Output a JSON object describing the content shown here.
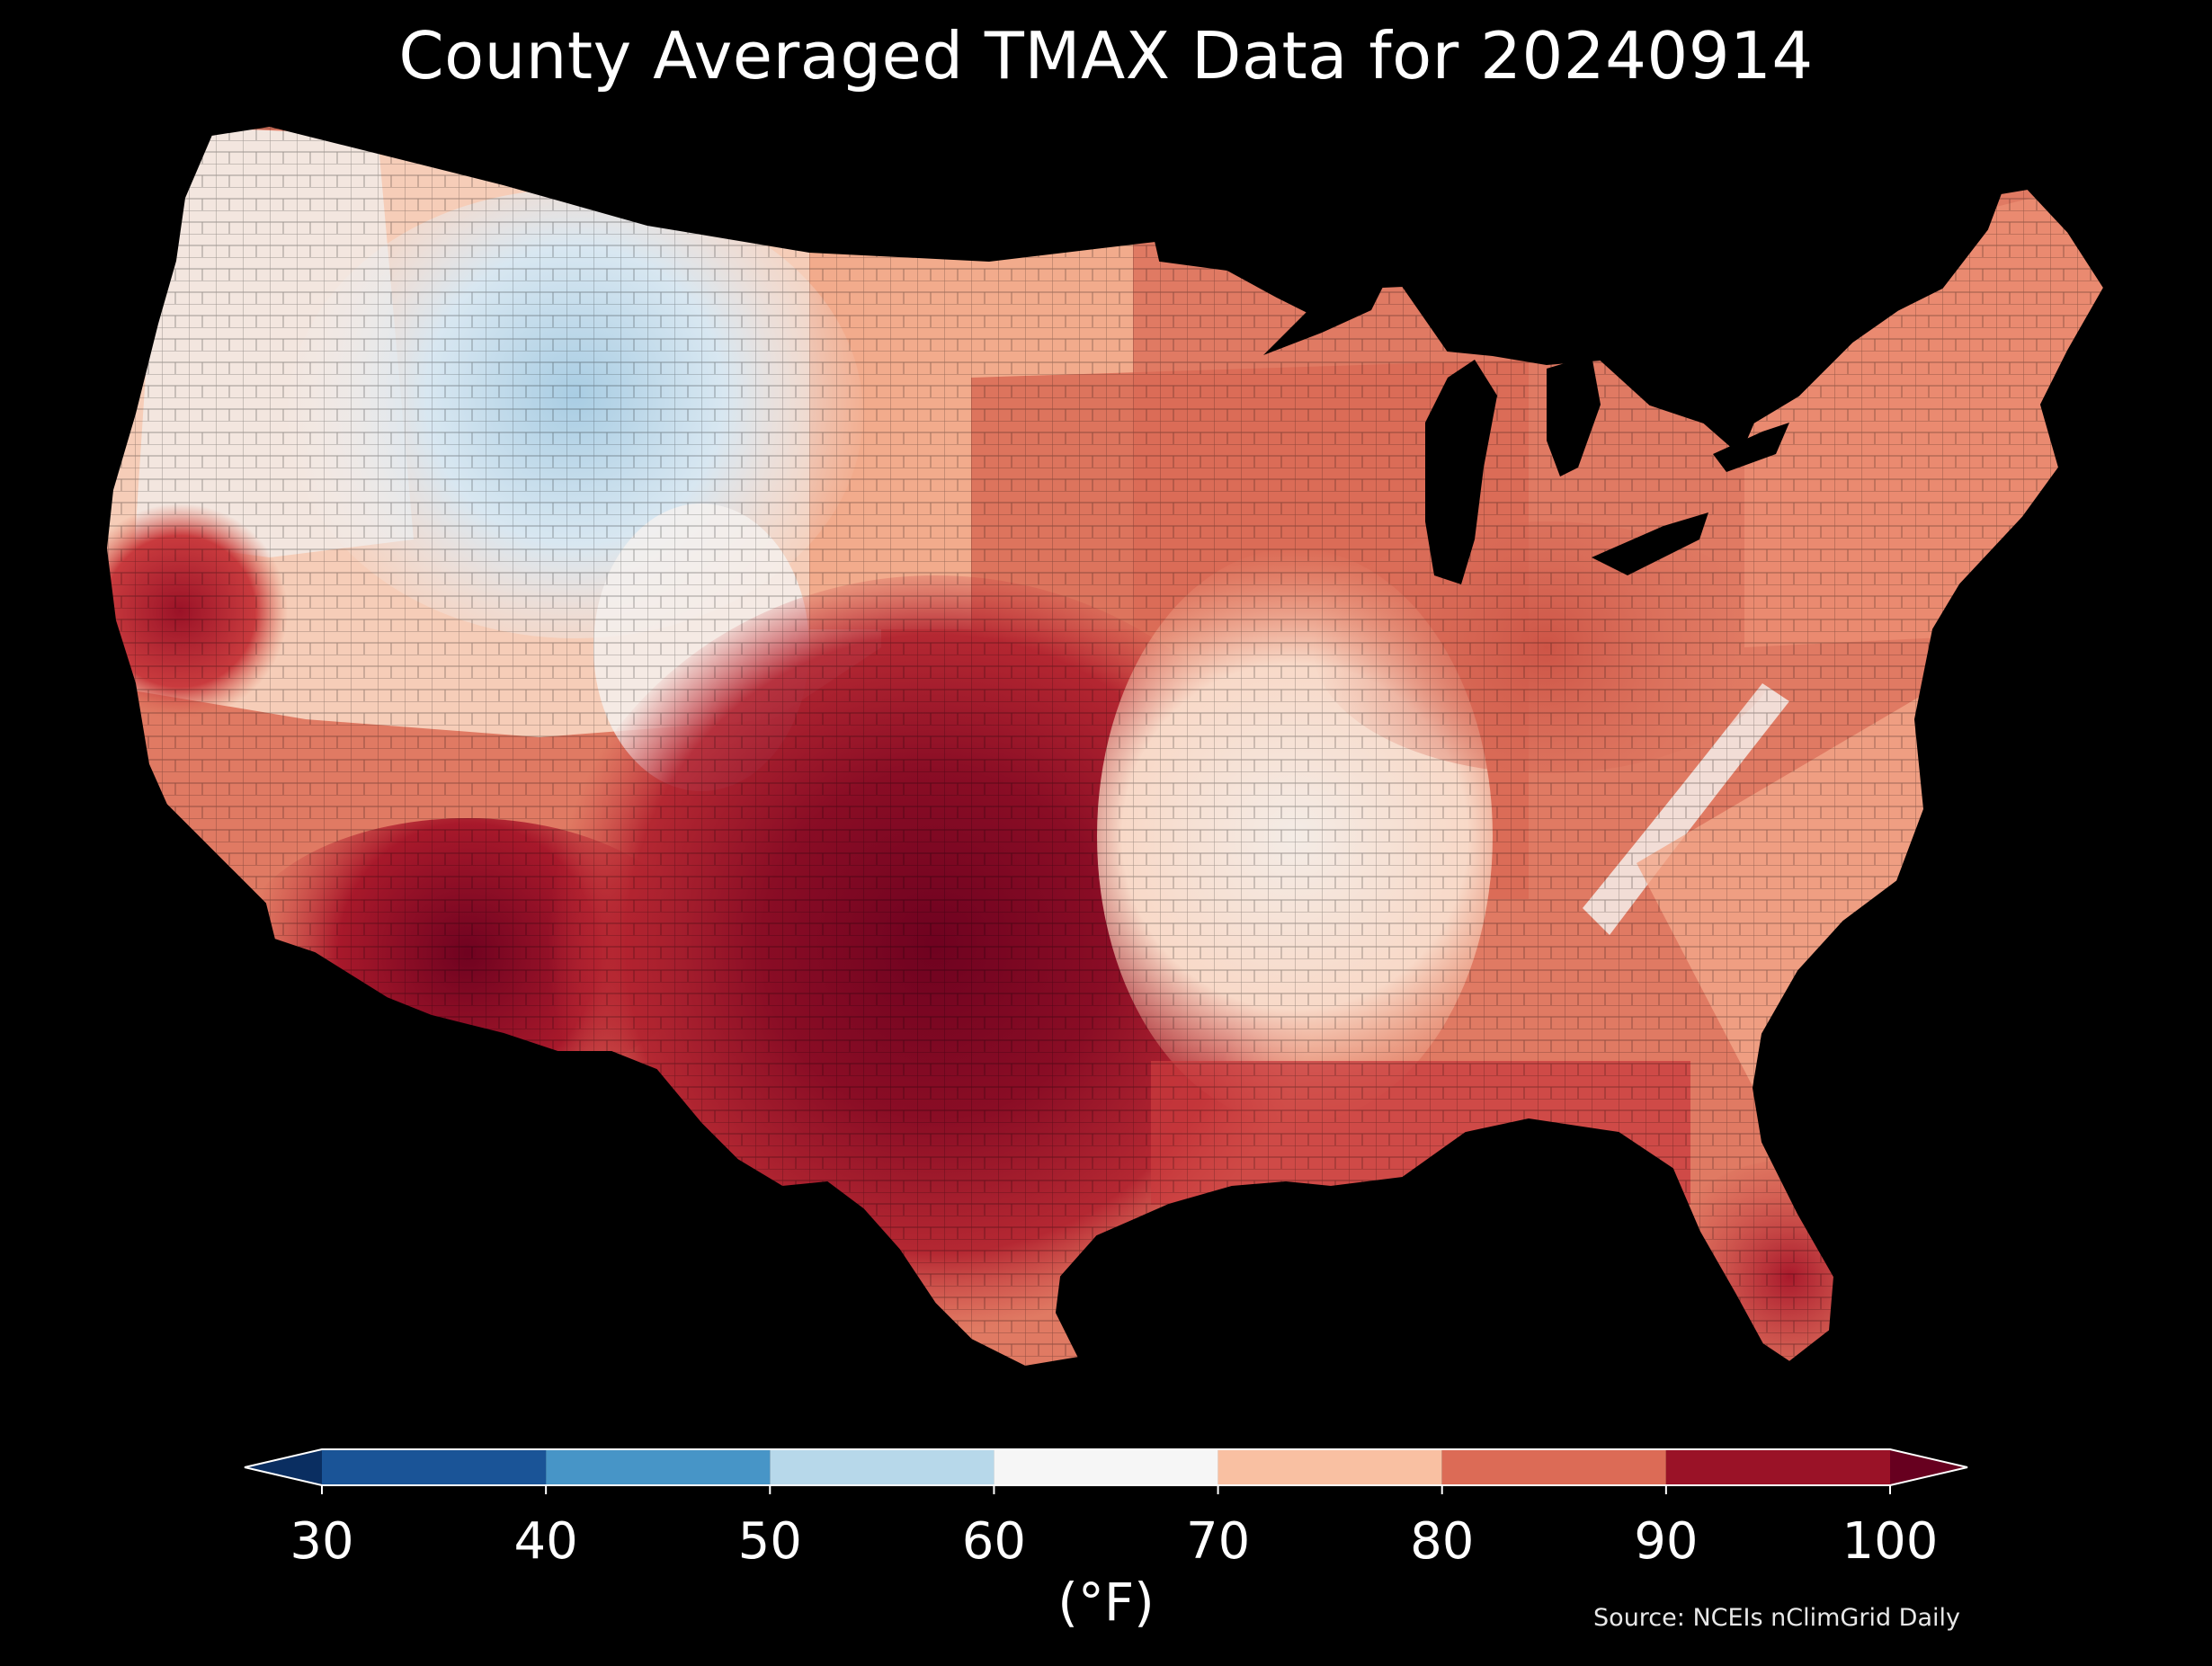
{
  "title": "County Averaged TMAX Data for 20240914",
  "colorbar": {
    "label": "(°F)",
    "ticks": [
      "30",
      "40",
      "50",
      "60",
      "70",
      "80",
      "90",
      "100"
    ],
    "bins": [
      {
        "from": 30,
        "to": 40,
        "color": "#1a5497"
      },
      {
        "from": 40,
        "to": 50,
        "color": "#4795c7"
      },
      {
        "from": 50,
        "to": 60,
        "color": "#b7d8ea"
      },
      {
        "from": 60,
        "to": 70,
        "color": "#f6f6f6"
      },
      {
        "from": 70,
        "to": 80,
        "color": "#f9c0a2"
      },
      {
        "from": 80,
        "to": 90,
        "color": "#dc6b56"
      },
      {
        "from": 90,
        "to": 100,
        "color": "#9a1227"
      }
    ],
    "under_color": "#0a2e61",
    "over_color": "#67001f"
  },
  "source": "Source: NCEIs nClimGrid Daily",
  "colors": {
    "background": "#000000",
    "very_hot": "#6f0220",
    "hot": "#a8192b",
    "warm_red": "#c93b3e",
    "warm": "#e07a63",
    "mild": "#f4ae8e",
    "cool_mild": "#f8d2bf",
    "neutral": "#f4f0ee",
    "cool": "#d8e7f1",
    "cold": "#a9cde3"
  }
}
